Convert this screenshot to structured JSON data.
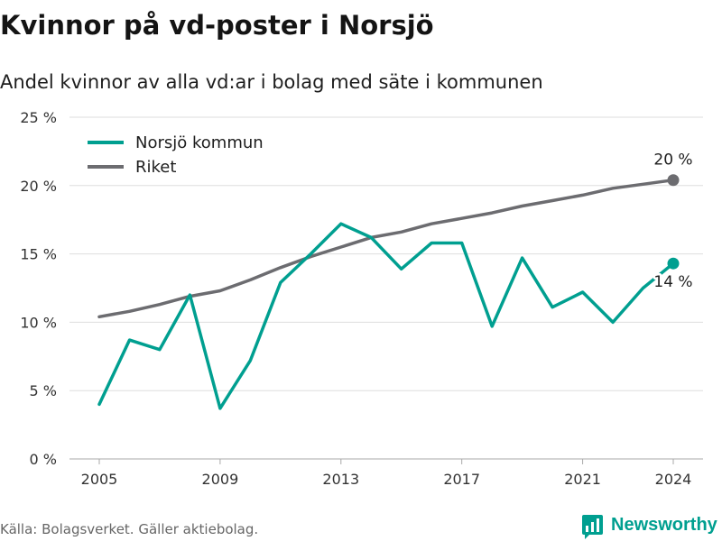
{
  "chart_data": {
    "type": "line",
    "title": "Kvinnor på vd-poster i Norsjö",
    "subtitle": "Andel kvinnor av alla vd:ar i bolag med säte i kommunen",
    "x": [
      2005,
      2006,
      2007,
      2008,
      2009,
      2010,
      2011,
      2012,
      2013,
      2014,
      2015,
      2016,
      2017,
      2018,
      2019,
      2020,
      2021,
      2022,
      2023,
      2024
    ],
    "xlim": [
      2005,
      2024
    ],
    "ylim": [
      0,
      25
    ],
    "x_ticks": [
      2005,
      2009,
      2013,
      2017,
      2021,
      2024
    ],
    "x_tick_labels": [
      "2005",
      "2009",
      "2013",
      "2017",
      "2021",
      "2024"
    ],
    "y_ticks": [
      0,
      5,
      10,
      15,
      20,
      25
    ],
    "y_tick_labels": [
      "0 %",
      "5 %",
      "10 %",
      "15 %",
      "20 %",
      "25 %"
    ],
    "grid": true,
    "legend_position": "top-left",
    "series": [
      {
        "name": "Norsjö kommun",
        "color": "#009f90",
        "values": [
          4.0,
          8.7,
          8.0,
          12.0,
          3.7,
          7.2,
          12.9,
          15.0,
          17.2,
          16.2,
          13.9,
          15.8,
          15.8,
          9.7,
          14.7,
          11.1,
          12.2,
          10.0,
          12.5,
          14.3
        ],
        "end_label": "14 %"
      },
      {
        "name": "Riket",
        "color": "#6c6c70",
        "values": [
          10.4,
          10.8,
          11.3,
          11.9,
          12.3,
          13.1,
          14.0,
          14.8,
          15.5,
          16.2,
          16.6,
          17.2,
          17.6,
          18.0,
          18.5,
          18.9,
          19.3,
          19.8,
          20.1,
          20.4
        ],
        "end_label": "20 %"
      }
    ]
  },
  "footer": {
    "source": "Källa: Bolagsverket. Gäller aktiebolag."
  },
  "brand": {
    "name": "Newsworthy",
    "icon": "newsworthy-logo-icon",
    "color": "#009f90"
  }
}
